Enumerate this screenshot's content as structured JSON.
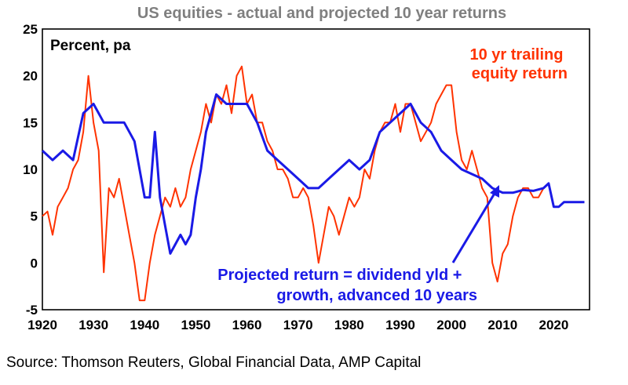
{
  "chart_data": {
    "type": "line",
    "title": "US equities - actual and projected 10 year returns",
    "ylabel": "Percent, pa",
    "xlim": [
      1920,
      2027
    ],
    "ylim": [
      -5,
      25
    ],
    "xticks": [
      1920,
      1930,
      1940,
      1950,
      1960,
      1970,
      1980,
      1990,
      2000,
      2010,
      2020
    ],
    "yticks": [
      25,
      20,
      15,
      10,
      5,
      0,
      -5
    ],
    "grid": false,
    "annotations": [
      {
        "lines": [
          "10 yr trailing",
          "equity return"
        ],
        "series": "trailing"
      },
      {
        "lines": [
          "Projected return = dividend yld +",
          "growth, advanced 10 years"
        ],
        "series": "projected"
      }
    ],
    "series": [
      {
        "key": "trailing",
        "color": "#ff3300",
        "points": [
          [
            1920,
            5
          ],
          [
            1921,
            5.5
          ],
          [
            1922,
            3
          ],
          [
            1923,
            6
          ],
          [
            1924,
            7
          ],
          [
            1925,
            8
          ],
          [
            1926,
            10
          ],
          [
            1927,
            11
          ],
          [
            1928,
            14
          ],
          [
            1929,
            20
          ],
          [
            1930,
            15
          ],
          [
            1931,
            12
          ],
          [
            1932,
            -1
          ],
          [
            1933,
            8
          ],
          [
            1934,
            7
          ],
          [
            1935,
            9
          ],
          [
            1936,
            6
          ],
          [
            1937,
            3
          ],
          [
            1938,
            0
          ],
          [
            1939,
            -4
          ],
          [
            1940,
            -4
          ],
          [
            1941,
            0
          ],
          [
            1942,
            3
          ],
          [
            1943,
            5
          ],
          [
            1944,
            7
          ],
          [
            1945,
            6
          ],
          [
            1946,
            8
          ],
          [
            1947,
            6
          ],
          [
            1948,
            7
          ],
          [
            1949,
            10
          ],
          [
            1950,
            12
          ],
          [
            1951,
            14
          ],
          [
            1952,
            17
          ],
          [
            1953,
            15
          ],
          [
            1954,
            18
          ],
          [
            1955,
            17
          ],
          [
            1956,
            19
          ],
          [
            1957,
            16
          ],
          [
            1958,
            20
          ],
          [
            1959,
            21
          ],
          [
            1960,
            17
          ],
          [
            1961,
            18
          ],
          [
            1962,
            15
          ],
          [
            1963,
            15
          ],
          [
            1964,
            13
          ],
          [
            1965,
            12
          ],
          [
            1966,
            10
          ],
          [
            1967,
            10
          ],
          [
            1968,
            9
          ],
          [
            1969,
            7
          ],
          [
            1970,
            7
          ],
          [
            1971,
            8
          ],
          [
            1972,
            7
          ],
          [
            1973,
            4
          ],
          [
            1974,
            0
          ],
          [
            1975,
            3
          ],
          [
            1976,
            6
          ],
          [
            1977,
            5
          ],
          [
            1978,
            3
          ],
          [
            1979,
            5
          ],
          [
            1980,
            7
          ],
          [
            1981,
            6
          ],
          [
            1982,
            7
          ],
          [
            1983,
            10
          ],
          [
            1984,
            9
          ],
          [
            1985,
            12
          ],
          [
            1986,
            14
          ],
          [
            1987,
            15
          ],
          [
            1988,
            15
          ],
          [
            1989,
            17
          ],
          [
            1990,
            14
          ],
          [
            1991,
            17
          ],
          [
            1992,
            17
          ],
          [
            1993,
            15
          ],
          [
            1994,
            13
          ],
          [
            1995,
            14
          ],
          [
            1996,
            15
          ],
          [
            1997,
            17
          ],
          [
            1998,
            18
          ],
          [
            1999,
            19
          ],
          [
            2000,
            19
          ],
          [
            2001,
            14
          ],
          [
            2002,
            11
          ],
          [
            2003,
            10
          ],
          [
            2004,
            12
          ],
          [
            2005,
            10
          ],
          [
            2006,
            8
          ],
          [
            2007,
            7
          ],
          [
            2008,
            0
          ],
          [
            2009,
            -2
          ],
          [
            2010,
            1
          ],
          [
            2011,
            2
          ],
          [
            2012,
            5
          ],
          [
            2013,
            7
          ],
          [
            2014,
            8
          ],
          [
            2015,
            8
          ],
          [
            2016,
            7
          ],
          [
            2017,
            7
          ],
          [
            2018,
            8
          ]
        ]
      },
      {
        "key": "projected",
        "color": "#1a1ae6",
        "points": [
          [
            1920,
            12
          ],
          [
            1922,
            11
          ],
          [
            1924,
            12
          ],
          [
            1926,
            11
          ],
          [
            1928,
            16
          ],
          [
            1930,
            17
          ],
          [
            1932,
            15
          ],
          [
            1934,
            15
          ],
          [
            1936,
            15
          ],
          [
            1938,
            13
          ],
          [
            1939,
            10
          ],
          [
            1940,
            7
          ],
          [
            1941,
            7
          ],
          [
            1942,
            14
          ],
          [
            1943,
            7
          ],
          [
            1944,
            4
          ],
          [
            1945,
            1
          ],
          [
            1946,
            2
          ],
          [
            1947,
            3
          ],
          [
            1948,
            2
          ],
          [
            1949,
            3
          ],
          [
            1950,
            7
          ],
          [
            1951,
            10
          ],
          [
            1952,
            14
          ],
          [
            1953,
            16
          ],
          [
            1954,
            18
          ],
          [
            1956,
            17
          ],
          [
            1958,
            17
          ],
          [
            1960,
            17
          ],
          [
            1962,
            15
          ],
          [
            1964,
            12
          ],
          [
            1966,
            11
          ],
          [
            1968,
            10
          ],
          [
            1970,
            9
          ],
          [
            1972,
            8
          ],
          [
            1974,
            8
          ],
          [
            1976,
            9
          ],
          [
            1978,
            10
          ],
          [
            1980,
            11
          ],
          [
            1982,
            10
          ],
          [
            1984,
            11
          ],
          [
            1986,
            14
          ],
          [
            1988,
            15
          ],
          [
            1990,
            16
          ],
          [
            1992,
            17
          ],
          [
            1994,
            15
          ],
          [
            1996,
            14
          ],
          [
            1998,
            12
          ],
          [
            2000,
            11
          ],
          [
            2002,
            10
          ],
          [
            2004,
            9.5
          ],
          [
            2006,
            9
          ],
          [
            2008,
            8
          ],
          [
            2010,
            7.5
          ],
          [
            2012,
            7.5
          ],
          [
            2014,
            7.8
          ],
          [
            2016,
            7.7
          ],
          [
            2018,
            8
          ],
          [
            2019,
            8.5
          ],
          [
            2020,
            6
          ],
          [
            2021,
            6
          ],
          [
            2022,
            6.5
          ],
          [
            2024,
            6.5
          ],
          [
            2026,
            6.5
          ]
        ]
      }
    ]
  },
  "source": "Source: Thomson Reuters, Global Financial Data, AMP Capital"
}
